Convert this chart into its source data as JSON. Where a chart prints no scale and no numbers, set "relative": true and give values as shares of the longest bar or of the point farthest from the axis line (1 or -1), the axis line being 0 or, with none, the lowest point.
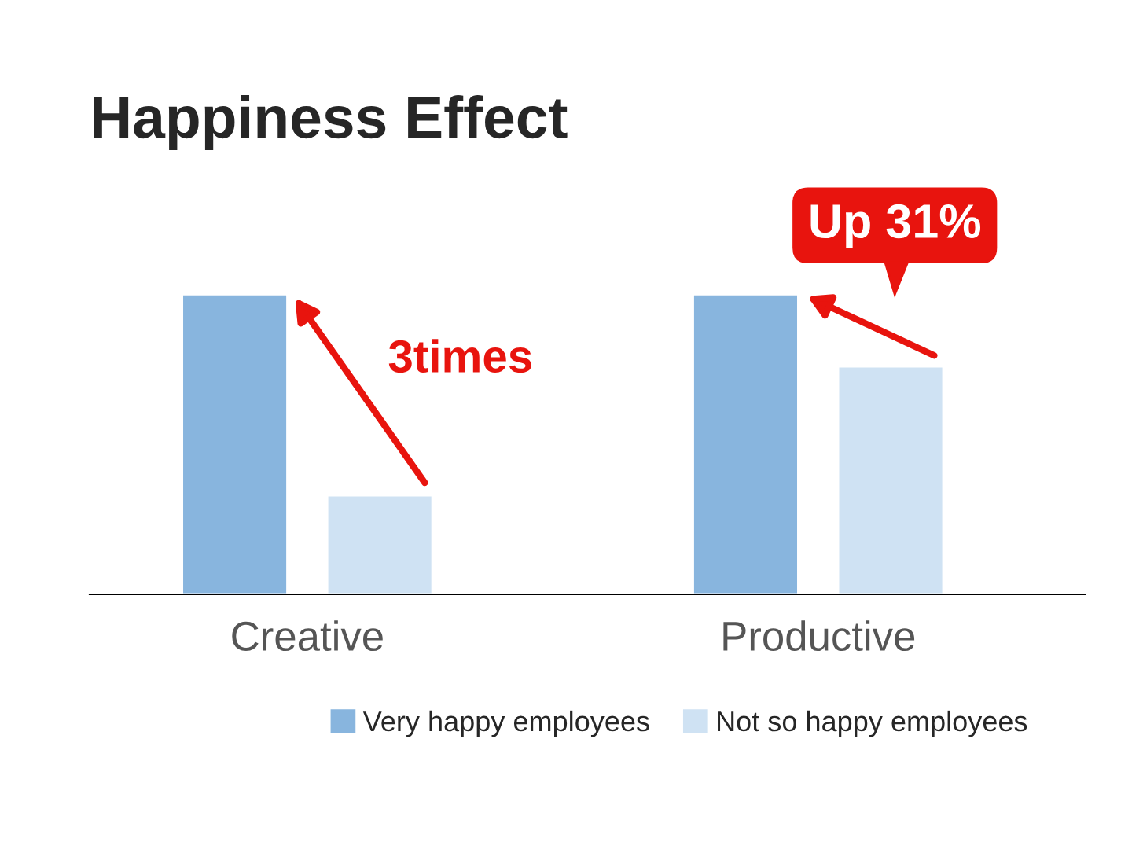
{
  "chart_data": {
    "type": "bar",
    "title": "Happiness Effect",
    "relative": true,
    "categories": [
      "Creative",
      "Productive"
    ],
    "series": [
      {
        "name": "Very happy employees",
        "color": "#88b5de",
        "values": [
          1,
          1
        ]
      },
      {
        "name": "Not so happy employees",
        "color": "#cfe2f3",
        "values": [
          0.33,
          0.76
        ]
      }
    ],
    "annotations": [
      "3times",
      "Up 31%"
    ],
    "legend": "bottom right",
    "grid": false
  }
}
